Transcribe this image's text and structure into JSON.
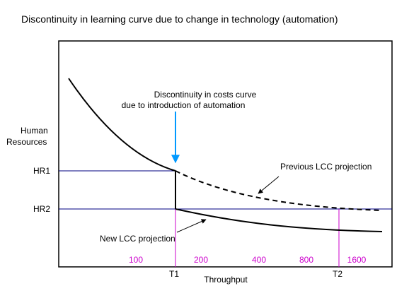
{
  "chart_data": {
    "type": "line",
    "title": "Discontinuity in learning curve due to change in technology (automation)",
    "xlabel": "Throughput",
    "ylabel_line1": "Human",
    "ylabel_line2": "Resources",
    "x_markers": [
      "T1",
      "T2"
    ],
    "y_markers": [
      "HR1",
      "HR2"
    ],
    "throughput_values": [
      "100",
      "200",
      "400",
      "800",
      "1600"
    ],
    "series": [
      {
        "name": "Previous LCC projection",
        "style": "dashed"
      },
      {
        "name": "New LCC projection",
        "style": "solid"
      }
    ],
    "annotations": {
      "discontinuity_line1": "Discontinuity in costs curve",
      "discontinuity_line2": "due to introduction of automation",
      "previous_lcc": "Previous LCC projection",
      "new_lcc": "New LCC projection"
    },
    "colors": {
      "curve": "#000000",
      "reference_lines": "#000080",
      "markers": "#cc00cc",
      "discontinuity_arrow": "#0099ff"
    }
  }
}
